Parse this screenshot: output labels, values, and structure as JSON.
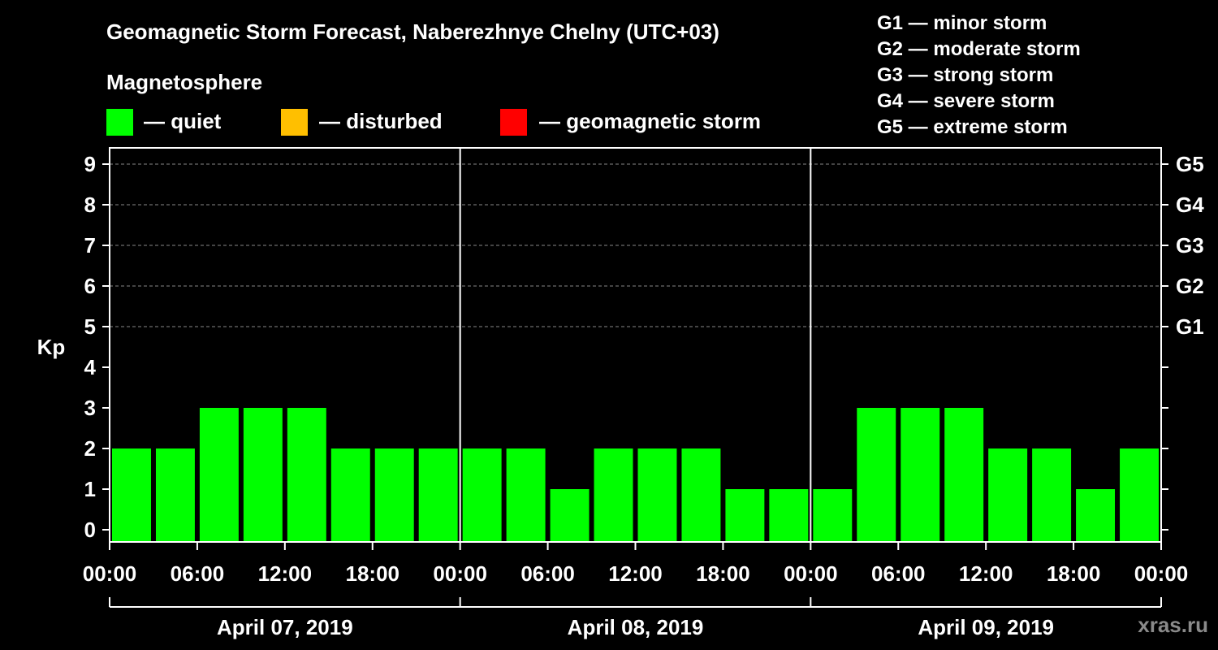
{
  "header": {
    "title": "Geomagnetic Storm Forecast, Naberezhnye Chelny (UTC+03)",
    "subtitle": "Magnetosphere"
  },
  "legend": [
    {
      "label": "— quiet",
      "color": "#00ff00"
    },
    {
      "label": "— disturbed",
      "color": "#ffbf00"
    },
    {
      "label": "— geomagnetic storm",
      "color": "#ff0000"
    }
  ],
  "g_scale": [
    "G1 — minor storm",
    "G2 — moderate storm",
    "G3 — strong storm",
    "G4 — severe storm",
    "G5 — extreme storm"
  ],
  "watermark": "xras.ru",
  "chart_data": {
    "type": "bar",
    "title": "Geomagnetic Storm Forecast, Naberezhnye Chelny (UTC+03)",
    "ylabel": "Kp",
    "ylim": [
      0,
      9
    ],
    "yticks": [
      "0",
      "1",
      "2",
      "3",
      "4",
      "5",
      "6",
      "7",
      "8",
      "9"
    ],
    "right_axis": [
      {
        "value": 5,
        "label": "G1"
      },
      {
        "value": 6,
        "label": "G2"
      },
      {
        "value": 7,
        "label": "G3"
      },
      {
        "value": 8,
        "label": "G4"
      },
      {
        "value": 9,
        "label": "G5"
      }
    ],
    "xtick_labels": [
      "00:00",
      "06:00",
      "12:00",
      "18:00",
      "00:00",
      "06:00",
      "12:00",
      "18:00",
      "00:00",
      "06:00",
      "12:00",
      "18:00",
      "00:00"
    ],
    "days": [
      "April 07, 2019",
      "April 08, 2019",
      "April 09, 2019"
    ],
    "interval_hours": 3,
    "values": [
      2,
      2,
      3,
      3,
      3,
      2,
      2,
      2,
      2,
      2,
      1,
      2,
      2,
      2,
      1,
      1,
      1,
      3,
      3,
      3,
      2,
      2,
      1,
      2
    ],
    "bar_color": "#00ff00",
    "grid": true
  }
}
